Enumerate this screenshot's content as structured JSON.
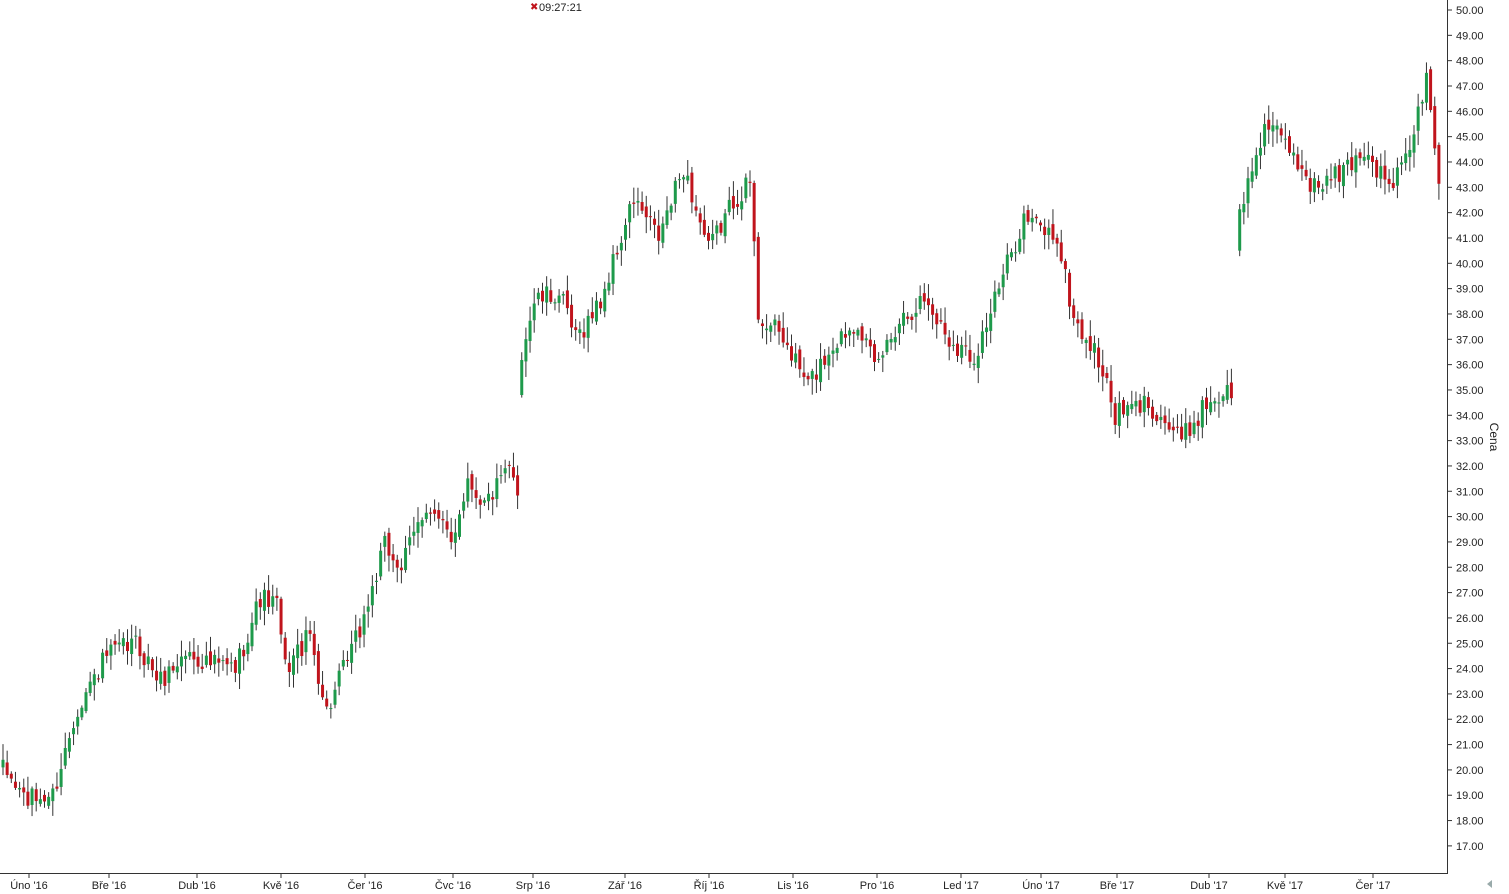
{
  "header": {
    "time": "09:27:21",
    "close_icon": "close-x-icon"
  },
  "axis": {
    "ylabel": "Cena"
  },
  "colors": {
    "up": "#1e9a4b",
    "down": "#c0141c",
    "wick": "#333333",
    "axis": "#333333"
  },
  "chart_data": {
    "type": "candlestick",
    "title": "",
    "xlabel": "",
    "ylabel": "Cena",
    "ylim": [
      16.5,
      50.5
    ],
    "y_ticks": [
      "17.00",
      "18.00",
      "19.00",
      "20.00",
      "21.00",
      "22.00",
      "23.00",
      "24.00",
      "25.00",
      "26.00",
      "27.00",
      "28.00",
      "29.00",
      "30.00",
      "31.00",
      "32.00",
      "33.00",
      "34.00",
      "35.00",
      "36.00",
      "37.00",
      "38.00",
      "39.00",
      "40.00",
      "41.00",
      "42.00",
      "43.00",
      "44.00",
      "45.00",
      "46.00",
      "47.00",
      "48.00",
      "49.00",
      "50.00"
    ],
    "x_ticks": [
      "Úno '16",
      "Bře '16",
      "Dub '16",
      "Kvě '16",
      "Čer '16",
      "Čvc '16",
      "Srp '16",
      "Zář '16",
      "Říj '16",
      "Lis '16",
      "Pro '16",
      "Led '17",
      "Úno '17",
      "Bře '17",
      "Dub '17",
      "Kvě '17",
      "Čer '17"
    ],
    "grid": false,
    "legend": "none",
    "sessions": 347,
    "anchors": [
      [
        0,
        20.0
      ],
      [
        6,
        18.8
      ],
      [
        12,
        19.0
      ],
      [
        18,
        22.5
      ],
      [
        25,
        24.5
      ],
      [
        32,
        25.0
      ],
      [
        38,
        23.5
      ],
      [
        44,
        24.6
      ],
      [
        50,
        24.2
      ],
      [
        56,
        24.0
      ],
      [
        62,
        26.8
      ],
      [
        66,
        26.5
      ],
      [
        68,
        24.0
      ],
      [
        74,
        25.3
      ],
      [
        78,
        22.3
      ],
      [
        86,
        25.5
      ],
      [
        92,
        28.8
      ],
      [
        96,
        28.0
      ],
      [
        102,
        30.5
      ],
      [
        108,
        29.0
      ],
      [
        112,
        31.5
      ],
      [
        116,
        30.5
      ],
      [
        122,
        31.8
      ],
      [
        124,
        31.0
      ],
      [
        125,
        36.5
      ],
      [
        128,
        38.5
      ],
      [
        134,
        38.8
      ],
      [
        138,
        37.0
      ],
      [
        144,
        38.5
      ],
      [
        152,
        42.5
      ],
      [
        158,
        41.0
      ],
      [
        164,
        43.8
      ],
      [
        170,
        40.5
      ],
      [
        176,
        42.5
      ],
      [
        180,
        43.2
      ],
      [
        182,
        38.0
      ],
      [
        188,
        37.0
      ],
      [
        194,
        35.2
      ],
      [
        200,
        36.8
      ],
      [
        206,
        37.8
      ],
      [
        210,
        35.8
      ],
      [
        216,
        37.8
      ],
      [
        222,
        38.6
      ],
      [
        228,
        37.0
      ],
      [
        234,
        36.3
      ],
      [
        240,
        39.0
      ],
      [
        246,
        41.8
      ],
      [
        254,
        41.0
      ],
      [
        258,
        37.8
      ],
      [
        264,
        36.2
      ],
      [
        268,
        34.0
      ],
      [
        276,
        34.5
      ],
      [
        284,
        33.0
      ],
      [
        290,
        34.5
      ],
      [
        296,
        35.0
      ],
      [
        298,
        42.0
      ],
      [
        304,
        45.5
      ],
      [
        310,
        44.5
      ],
      [
        316,
        43.0
      ],
      [
        322,
        43.5
      ],
      [
        328,
        44.5
      ],
      [
        334,
        43.0
      ],
      [
        338,
        44.0
      ],
      [
        343,
        47.2
      ],
      [
        346,
        43.5
      ]
    ]
  }
}
